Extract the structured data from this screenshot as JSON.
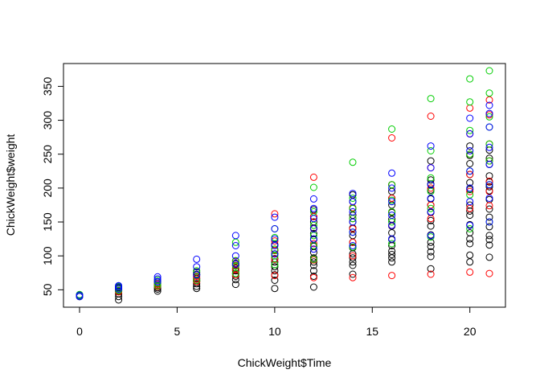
{
  "chart_data": {
    "type": "scatter",
    "title": "",
    "xlabel": "ChickWeight$Time",
    "ylabel": "ChickWeight$weight",
    "xlim": [
      0,
      21
    ],
    "ylim": [
      35,
      373
    ],
    "xticks": [
      0,
      5,
      10,
      15,
      20
    ],
    "yticks": [
      50,
      100,
      150,
      200,
      250,
      300,
      350
    ],
    "grid": false,
    "legend": "none",
    "colors": {
      "g1": "#000000",
      "g2": "#ff0000",
      "g3": "#00cd00",
      "g4": "#0000ff"
    },
    "series": [
      {
        "color_key": "g1",
        "x": [
          0,
          0,
          0,
          2,
          2,
          2,
          2,
          2,
          2,
          2,
          4,
          4,
          4,
          4,
          4,
          4,
          4,
          6,
          6,
          6,
          6,
          6,
          6,
          6,
          6,
          8,
          8,
          8,
          8,
          8,
          8,
          8,
          8,
          10,
          10,
          10,
          10,
          10,
          10,
          10,
          10,
          10,
          10,
          12,
          12,
          12,
          12,
          12,
          12,
          12,
          12,
          12,
          12,
          12,
          12,
          12,
          12,
          14,
          14,
          14,
          14,
          14,
          14,
          14,
          14,
          14,
          14,
          14,
          14,
          14,
          14,
          16,
          16,
          16,
          16,
          16,
          16,
          16,
          16,
          16,
          16,
          16,
          16,
          16,
          16,
          18,
          18,
          18,
          18,
          18,
          18,
          18,
          18,
          18,
          18,
          18,
          18,
          18,
          18,
          18,
          20,
          20,
          20,
          20,
          20,
          20,
          20,
          20,
          20,
          20,
          20,
          20,
          20,
          20,
          20,
          21,
          21,
          21,
          21,
          21,
          21,
          21,
          21,
          21,
          21,
          21,
          21,
          21,
          21,
          21
        ],
        "y": [
          40,
          41,
          42,
          35,
          40,
          44,
          48,
          49,
          51,
          53,
          48,
          51,
          53,
          55,
          57,
          59,
          62,
          52,
          55,
          59,
          62,
          64,
          67,
          73,
          76,
          58,
          65,
          70,
          74,
          78,
          82,
          86,
          89,
          52,
          64,
          72,
          78,
          84,
          91,
          96,
          103,
          108,
          117,
          54,
          70,
          78,
          86,
          91,
          97,
          105,
          114,
          124,
          133,
          141,
          150,
          158,
          168,
          73,
          86,
          91,
          97,
          103,
          112,
          120,
          130,
          141,
          150,
          160,
          170,
          180,
          190,
          91,
          97,
          102,
          107,
          115,
          124,
          134,
          144,
          154,
          164,
          175,
          185,
          195,
          205,
          81,
          99,
          106,
          114,
          120,
          131,
          144,
          152,
          164,
          175,
          184,
          197,
          206,
          212,
          240,
          91,
          101,
          118,
          125,
          134,
          146,
          160,
          166,
          175,
          198,
          208,
          220,
          236,
          248,
          262,
          98,
          116,
          124,
          130,
          143,
          157,
          169,
          183,
          196,
          202,
          209,
          218,
          235,
          244,
          256
        ]
      },
      {
        "color_key": "g2",
        "x": [
          0,
          0,
          2,
          2,
          2,
          4,
          4,
          4,
          6,
          6,
          6,
          8,
          8,
          8,
          8,
          10,
          10,
          10,
          10,
          10,
          12,
          12,
          12,
          12,
          12,
          12,
          14,
          14,
          14,
          14,
          14,
          14,
          16,
          16,
          16,
          16,
          16,
          16,
          18,
          18,
          18,
          18,
          18,
          18,
          20,
          20,
          20,
          20,
          20,
          20,
          20,
          21,
          21,
          21,
          21,
          21,
          21,
          21,
          21
        ],
        "y": [
          41,
          42,
          47,
          49,
          51,
          55,
          57,
          59,
          62,
          66,
          70,
          72,
          80,
          86,
          92,
          71,
          95,
          108,
          122,
          162,
          68,
          94,
          118,
          140,
          158,
          216,
          68,
          100,
          120,
          140,
          155,
          171,
          71,
          145,
          165,
          185,
          205,
          274,
          73,
          155,
          175,
          200,
          230,
          306,
          76,
          170,
          195,
          220,
          250,
          280,
          318,
          74,
          174,
          195,
          210,
          240,
          265,
          308,
          330
        ]
      },
      {
        "color_key": "g3",
        "x": [
          0,
          0,
          2,
          2,
          2,
          4,
          4,
          4,
          6,
          6,
          6,
          8,
          8,
          8,
          8,
          10,
          10,
          10,
          10,
          10,
          12,
          12,
          12,
          12,
          12,
          12,
          14,
          14,
          14,
          14,
          14,
          14,
          16,
          16,
          16,
          16,
          16,
          16,
          18,
          18,
          18,
          18,
          18,
          18,
          20,
          20,
          20,
          20,
          20,
          20,
          20,
          21,
          21,
          21,
          21,
          21,
          21,
          21,
          21
        ],
        "y": [
          41,
          43,
          49,
          52,
          55,
          56,
          60,
          64,
          64,
          72,
          78,
          74,
          85,
          93,
          120,
          87,
          100,
          110,
          127,
          140,
          95,
          115,
          130,
          145,
          165,
          201,
          113,
          135,
          155,
          170,
          185,
          238,
          118,
          150,
          165,
          182,
          205,
          287,
          128,
          170,
          195,
          215,
          255,
          332,
          140,
          190,
          225,
          250,
          285,
          327,
          361,
          150,
          205,
          240,
          265,
          290,
          305,
          340,
          373
        ]
      },
      {
        "color_key": "g4",
        "x": [
          0,
          0,
          2,
          2,
          2,
          4,
          4,
          4,
          6,
          6,
          6,
          8,
          8,
          8,
          8,
          10,
          10,
          10,
          10,
          10,
          12,
          12,
          12,
          12,
          12,
          12,
          14,
          14,
          14,
          14,
          14,
          14,
          16,
          16,
          16,
          16,
          16,
          16,
          18,
          18,
          18,
          18,
          18,
          18,
          20,
          20,
          20,
          20,
          20,
          20,
          20,
          21,
          21,
          21,
          21,
          21,
          21,
          21,
          21
        ],
        "y": [
          40,
          42,
          51,
          54,
          56,
          62,
          66,
          69,
          72,
          84,
          95,
          88,
          100,
          115,
          130,
          103,
          115,
          125,
          140,
          157,
          110,
          125,
          140,
          155,
          170,
          184,
          115,
          135,
          150,
          165,
          180,
          192,
          125,
          145,
          160,
          180,
          200,
          222,
          130,
          165,
          185,
          205,
          230,
          262,
          145,
          180,
          200,
          225,
          255,
          280,
          303,
          150,
          185,
          205,
          235,
          260,
          290,
          310,
          322
        ]
      }
    ]
  }
}
